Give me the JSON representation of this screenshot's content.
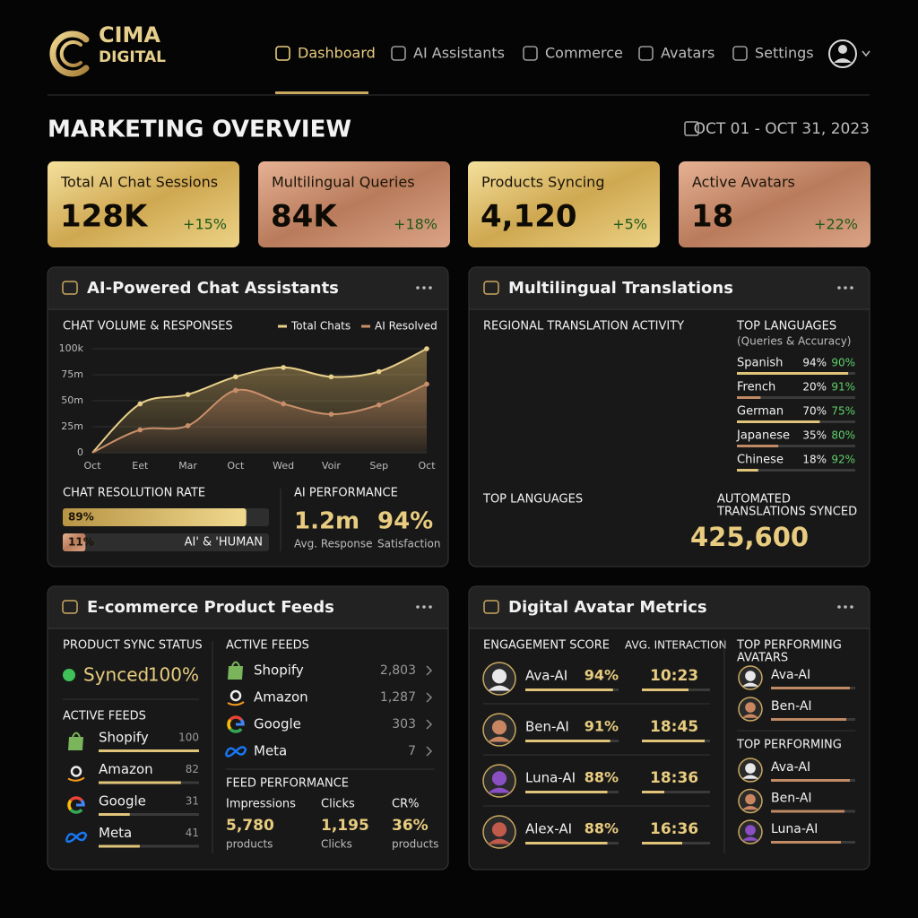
{
  "header": {
    "brand": "CIMA",
    "brand_sub": "DIGITAL",
    "nav": [
      "Dashboard",
      "AI Assistants",
      "Commerce",
      "Avatars",
      "Settings"
    ]
  },
  "page": {
    "title": "MARKETING OVERVIEW",
    "date_range": "OCT 01 - OCT 31, 2023"
  },
  "kpis": [
    {
      "label": "Total AI Chat Sessions",
      "value": "128K",
      "change": "+15%"
    },
    {
      "label": "Multilingual Queries",
      "value": "84K",
      "change": "+18%"
    },
    {
      "label": "Products Syncing",
      "value": "4,120",
      "change": "+5%"
    },
    {
      "label": "Active Avatars",
      "value": "18",
      "change": "+22%"
    }
  ],
  "chat_panel": {
    "title": "AI-Powered Chat Assistants",
    "chart_data": {
      "type": "line",
      "title": "CHAT VOLUME & RESPONSES",
      "categories": [
        "Oct",
        "Eet",
        "Mar",
        "Oct",
        "Wed",
        "Voir",
        "Sep",
        "Oct"
      ],
      "series": [
        {
          "name": "Total Chats",
          "color": "#e8cf8a",
          "values": [
            0,
            47,
            56,
            73,
            82,
            73,
            78,
            100
          ]
        },
        {
          "name": "AI Resolved",
          "color": "#c98f6a",
          "values": [
            0,
            22,
            26,
            60,
            47,
            37,
            46,
            66
          ]
        }
      ],
      "ylim": [
        0,
        100
      ],
      "yticks": [
        {
          "value": 100,
          "label": "100k"
        },
        {
          "value": 75,
          "label": "75m"
        },
        {
          "value": 50,
          "label": "50m"
        },
        {
          "value": 25,
          "label": "25m"
        },
        0
      ],
      "grid": true
    },
    "resolution": {
      "title": "CHAT RESOLUTION RATE",
      "values": [
        89,
        11
      ],
      "value_labels": [
        "89%",
        "11%"
      ],
      "note": "AI' & 'HUMAN"
    },
    "performance": {
      "title": "AI PERFORMANCE",
      "metrics": [
        {
          "value": "1.2m",
          "label": "Avg. Response"
        },
        {
          "value": "94%",
          "label": "Satisfaction"
        }
      ]
    }
  },
  "translations": {
    "title": "Multilingual Translations",
    "map_title": "REGIONAL TRANSLATION ACTIVITY",
    "languages": {
      "title": "TOP LANGUAGES",
      "subtitle": "(Queries & Accuracy)",
      "names": [
        "Spanish",
        "French",
        "German",
        "Japanese",
        "Chinese"
      ],
      "shares": [
        94,
        20,
        70,
        35,
        18
      ],
      "share_labels": [
        "94%",
        "20%",
        "70%",
        "35%",
        "18%"
      ],
      "accuracy": [
        "90%",
        "91%",
        "75%",
        "80%",
        "92%"
      ]
    },
    "trend_title": "TOP LANGUAGES",
    "synced": {
      "label_line1": "AUTOMATED",
      "label_line2": "TRANSLATIONS SYNCED",
      "value": "425,600"
    }
  },
  "ecommerce": {
    "title": "E-commerce Product Feeds",
    "sync": {
      "title": "PRODUCT SYNC STATUS",
      "status": "Synced",
      "percent": "100%"
    },
    "feeds_title": "ACTIVE FEEDS",
    "feeds": {
      "names": [
        "Shopify",
        "Amazon",
        "Google",
        "Meta"
      ],
      "values": [
        100,
        82,
        31,
        41
      ]
    },
    "active": {
      "title": "ACTIVE FEEDS",
      "names": [
        "Shopify",
        "Amazon",
        "Google",
        "Meta"
      ],
      "counts": [
        "2,803",
        "1,287",
        "303",
        "7"
      ]
    },
    "performance": {
      "title": "FEED PERFORMANCE",
      "columns": [
        {
          "label": "Impressions",
          "value": "5,780",
          "unit": "products"
        },
        {
          "label": "Clicks",
          "value": "1,195",
          "unit": "Clicks"
        },
        {
          "label": "CR%",
          "value": "36%",
          "unit": "products"
        }
      ]
    }
  },
  "avatars": {
    "title": "Digital Avatar Metrics",
    "engagement_title": "ENGAGEMENT SCORE",
    "interaction_title": "AVG. INTERACTION",
    "rows": {
      "names": [
        "Ava-AI",
        "Ben-AI",
        "Luna-AI",
        "Alex-AI"
      ],
      "scores": [
        94,
        91,
        88,
        88
      ],
      "score_labels": [
        "94%",
        "91%",
        "88%",
        "88%"
      ],
      "times": [
        "10:23",
        "18:45",
        "18:36",
        "16:36"
      ]
    },
    "top1": {
      "title_line1": "TOP PERFORMING",
      "title_line2": "AVATARS",
      "names": [
        "Ava-AI",
        "Ben-AI"
      ]
    },
    "top2": {
      "title": "TOP PERFORMING",
      "names": [
        "Ava-AI",
        "Ben-AI",
        "Luna-AI"
      ]
    }
  }
}
